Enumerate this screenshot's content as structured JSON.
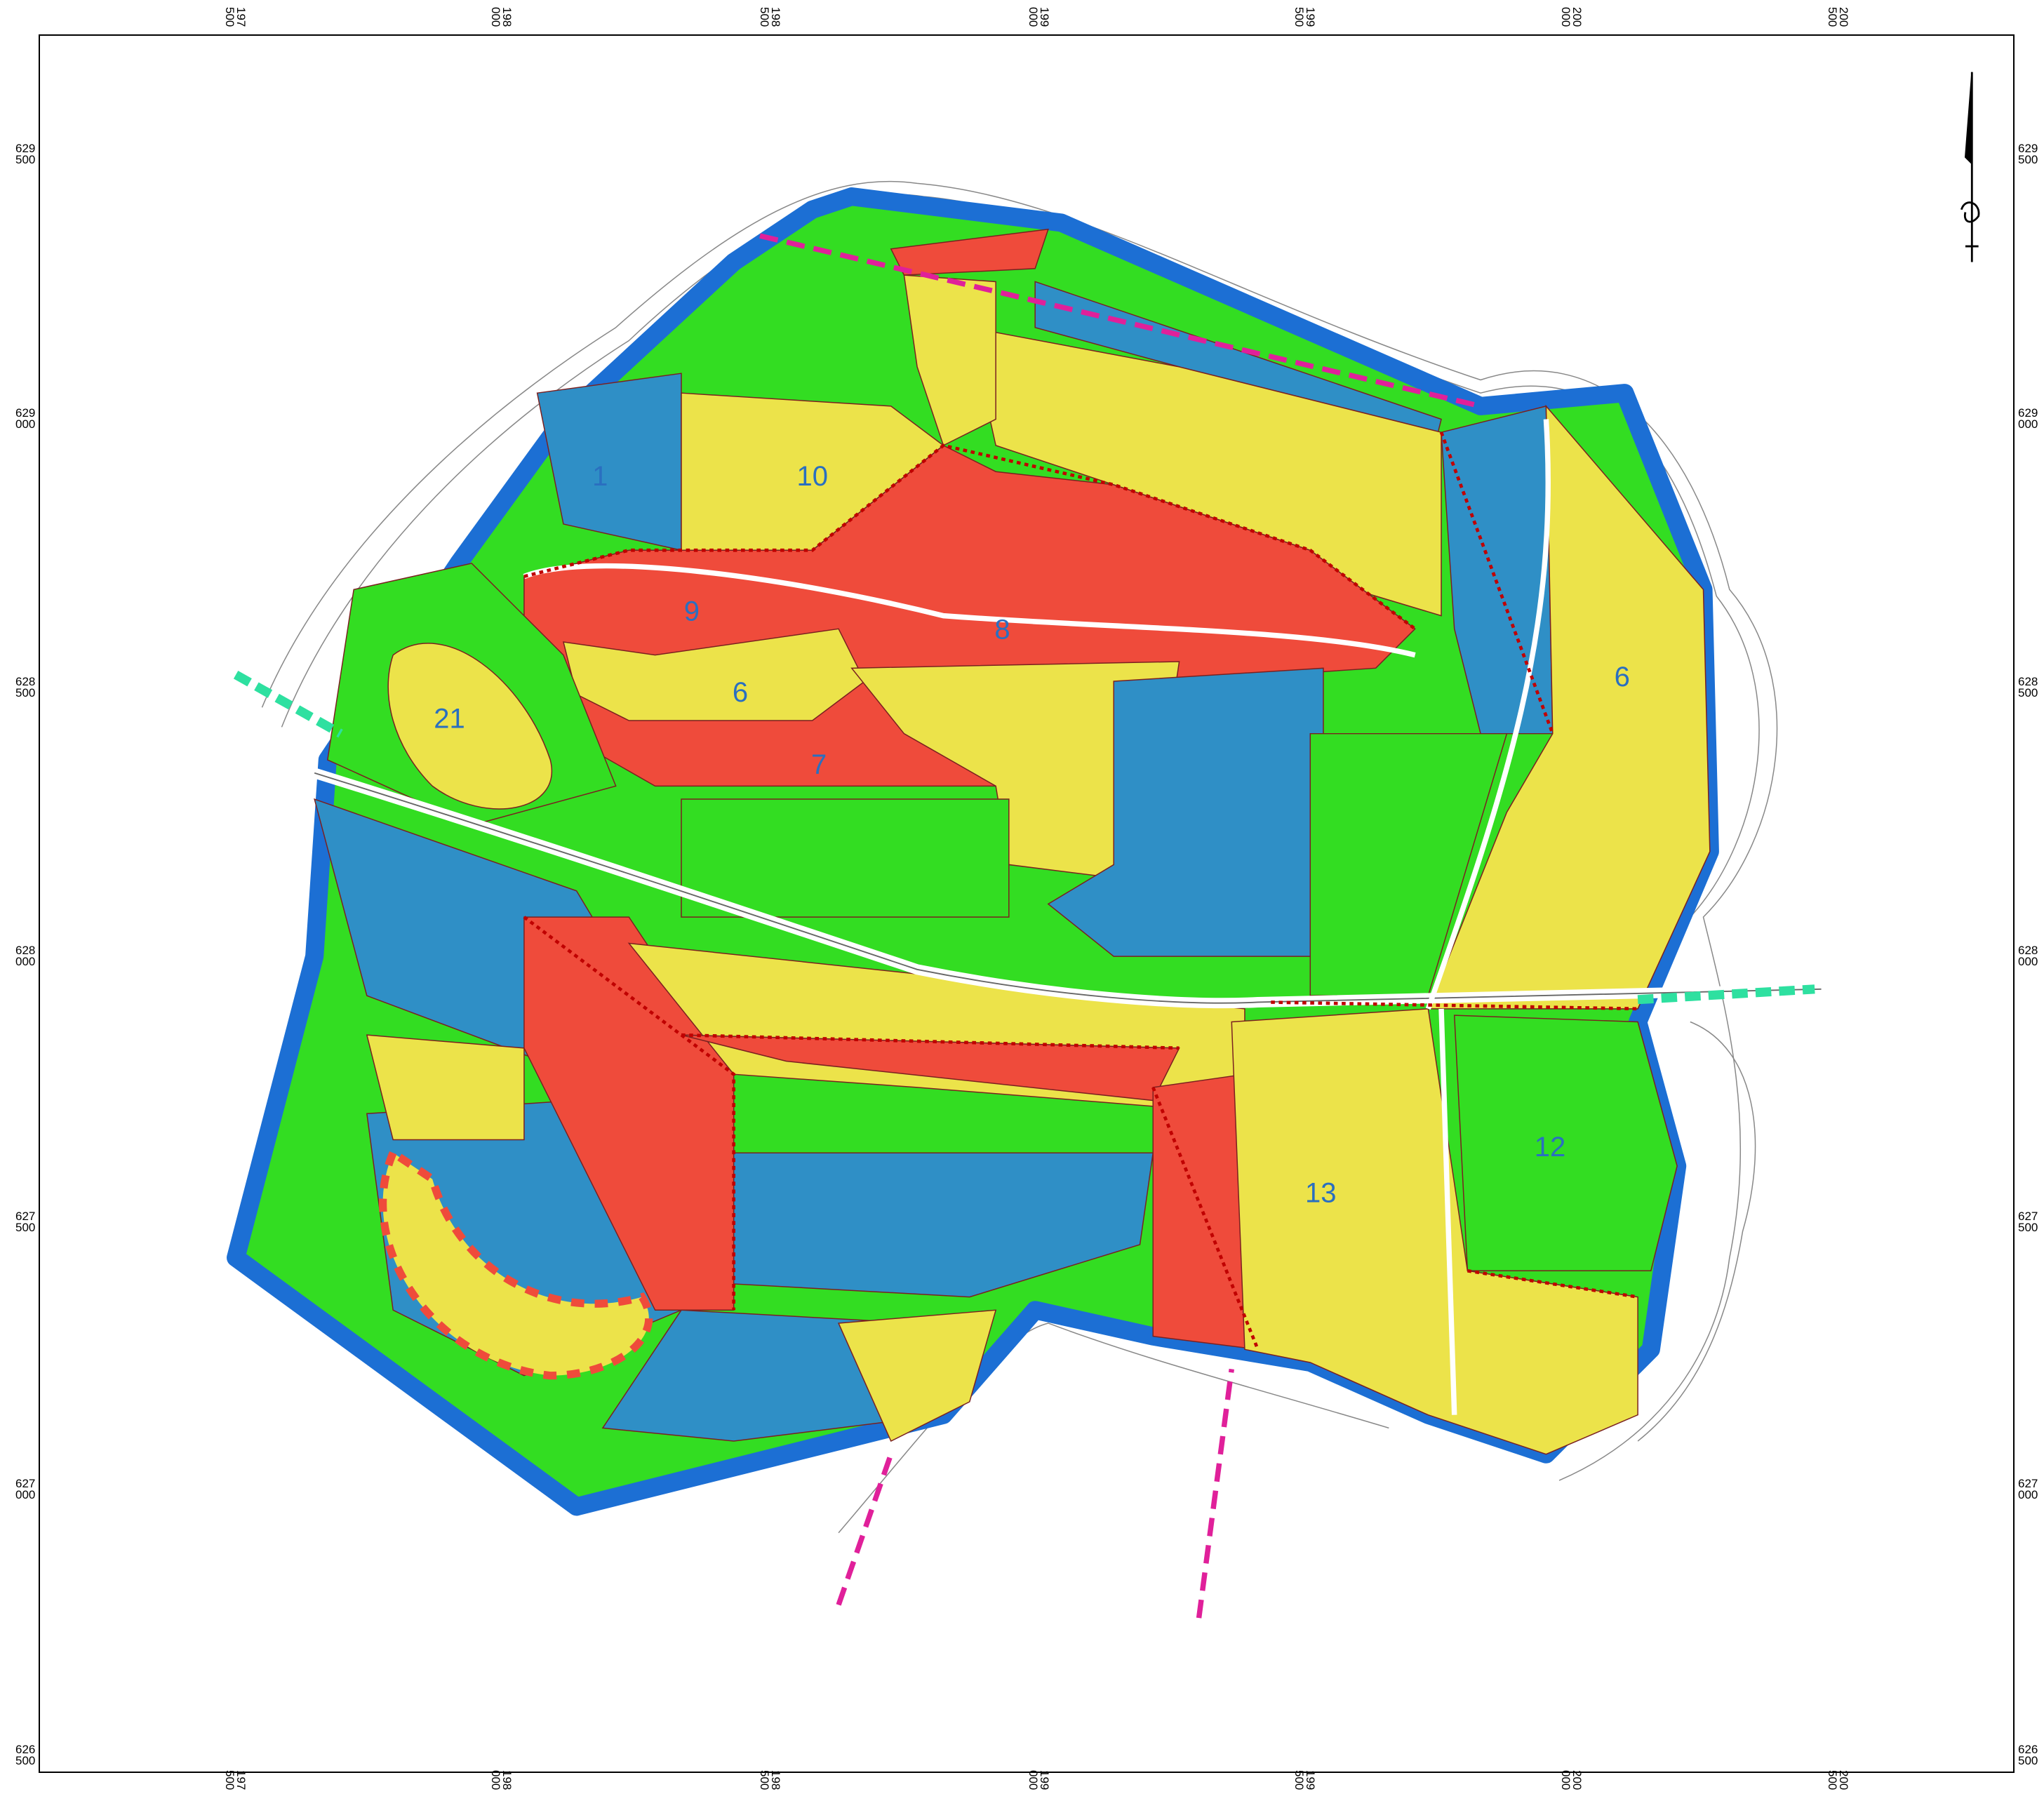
{
  "grid": {
    "x_labels": [
      {
        "top": "197",
        "bottom": "500"
      },
      {
        "top": "198",
        "bottom": "000"
      },
      {
        "top": "198",
        "bottom": "500"
      },
      {
        "top": "199",
        "bottom": "000"
      },
      {
        "top": "199",
        "bottom": "500"
      },
      {
        "top": "200",
        "bottom": "000"
      },
      {
        "top": "200",
        "bottom": "500"
      }
    ],
    "y_labels": [
      {
        "top": "629",
        "bottom": "500"
      },
      {
        "top": "629",
        "bottom": "000"
      },
      {
        "top": "628",
        "bottom": "500"
      },
      {
        "top": "628",
        "bottom": "000"
      },
      {
        "top": "627",
        "bottom": "500"
      },
      {
        "top": "627",
        "bottom": "000"
      },
      {
        "top": "626",
        "bottom": "500"
      }
    ]
  },
  "zones": [
    {
      "label": "1"
    },
    {
      "label": "10"
    },
    {
      "label": "9"
    },
    {
      "label": "8"
    },
    {
      "label": "6"
    },
    {
      "label": "7"
    },
    {
      "label": "21"
    },
    {
      "label": "6"
    },
    {
      "label": "13"
    },
    {
      "label": "12"
    }
  ]
}
